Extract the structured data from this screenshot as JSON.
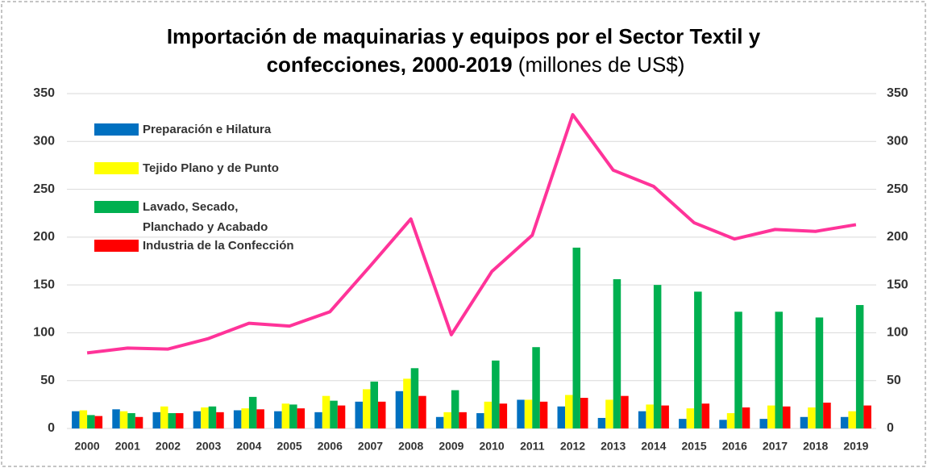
{
  "chart_data": {
    "type": "bar",
    "title": [
      "Importación de maquinarias y equipos por el Sector Textil y",
      "confecciones, 2000-2019"
    ],
    "subtitle": "(millones de US$)",
    "categories": [
      "2000",
      "2001",
      "2002",
      "2003",
      "2004",
      "2005",
      "2006",
      "2007",
      "2008",
      "2009",
      "2010",
      "2011",
      "2012",
      "2013",
      "2014",
      "2015",
      "2016",
      "2017",
      "2018",
      "2019"
    ],
    "series": [
      {
        "name": "Preparación e Hilatura",
        "color": "#0070c0",
        "values": [
          18,
          20,
          17,
          18,
          19,
          18,
          17,
          28,
          39,
          12,
          16,
          30,
          23,
          11,
          18,
          10,
          9,
          10,
          12,
          12
        ]
      },
      {
        "name": "Tejido Plano y de Punto",
        "color": "#ffff00",
        "values": [
          19,
          18,
          23,
          22,
          21,
          26,
          34,
          41,
          52,
          17,
          28,
          30,
          35,
          30,
          25,
          21,
          16,
          24,
          22,
          18
        ]
      },
      {
        "name": "Lavado, Secado,\nPlanchado y Acabado",
        "color": "#00b050",
        "values": [
          14,
          16,
          16,
          23,
          33,
          25,
          29,
          49,
          63,
          40,
          71,
          85,
          189,
          156,
          150,
          143,
          122,
          122,
          116,
          129
        ]
      },
      {
        "name": "Industria de la Confección",
        "color": "#ff0000",
        "values": [
          13,
          12,
          16,
          17,
          20,
          21,
          24,
          28,
          34,
          17,
          26,
          28,
          32,
          34,
          24,
          26,
          22,
          23,
          27,
          24
        ]
      },
      {
        "type": "line",
        "axis": "y2",
        "color": "#ff3399",
        "values": [
          79,
          84,
          83,
          94,
          110,
          107,
          122,
          170,
          219,
          98,
          164,
          202,
          328,
          270,
          253,
          215,
          198,
          208,
          206,
          213
        ]
      }
    ],
    "ylim": [
      0,
      350
    ],
    "yticks": [
      0,
      50,
      100,
      150,
      200,
      250,
      300,
      350
    ],
    "y2lim": [
      0,
      350
    ],
    "y2ticks": [
      0,
      50,
      100,
      150,
      200,
      250,
      300,
      350
    ],
    "grid": true
  }
}
